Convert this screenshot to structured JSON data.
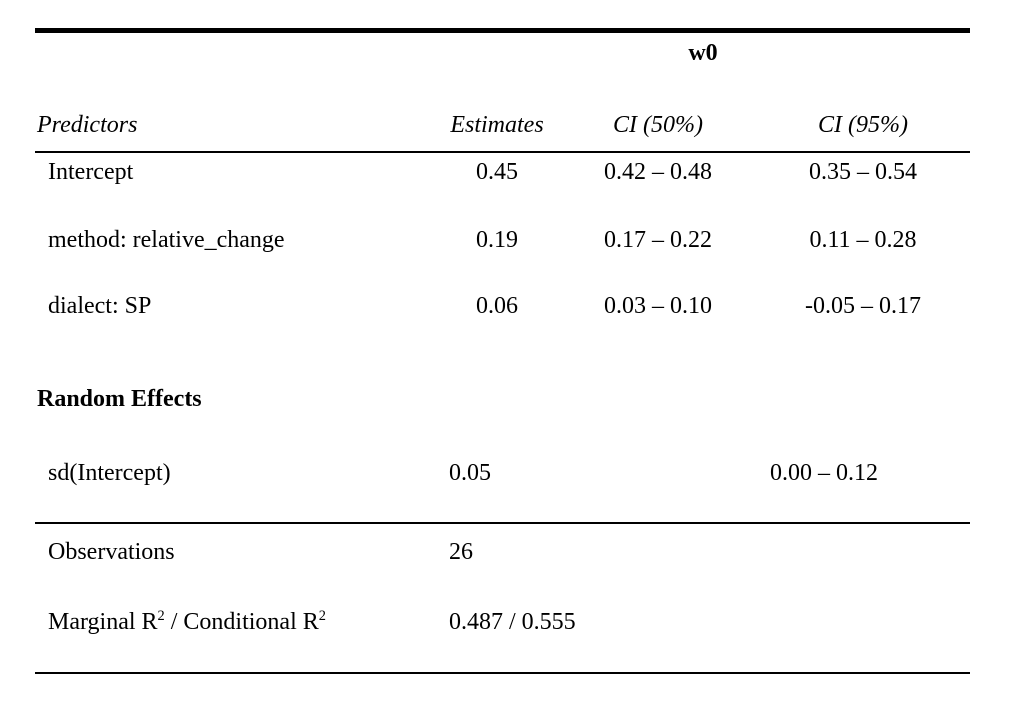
{
  "model": {
    "name": "w0"
  },
  "header": {
    "predictors": "Predictors",
    "estimates": "Estimates",
    "ci50": "CI (50%)",
    "ci95": "CI (95%)"
  },
  "fixed_effects": [
    {
      "term": "Intercept",
      "estimate": "0.45",
      "ci50": "0.42 – 0.48",
      "ci95": "0.35 – 0.54"
    },
    {
      "term": "method: relative_change",
      "estimate": "0.19",
      "ci50": "0.17 – 0.22",
      "ci95": "0.11 – 0.28"
    },
    {
      "term": "dialect: SP",
      "estimate": "0.06",
      "ci50": "0.03 – 0.10",
      "ci95": "-0.05 – 0.17"
    }
  ],
  "random_effects": {
    "heading": "Random Effects",
    "rows": [
      {
        "term": "sd(Intercept)",
        "estimate": "0.05",
        "ci95": "0.00 – 0.12"
      }
    ]
  },
  "summary": {
    "observations_label": "Observations",
    "observations_value": "26",
    "r2_label": {
      "part1": "Marginal R",
      "sup1": "2",
      "part2": " / Conditional R",
      "sup2": "2"
    },
    "r2_value": "0.487 / 0.555"
  }
}
